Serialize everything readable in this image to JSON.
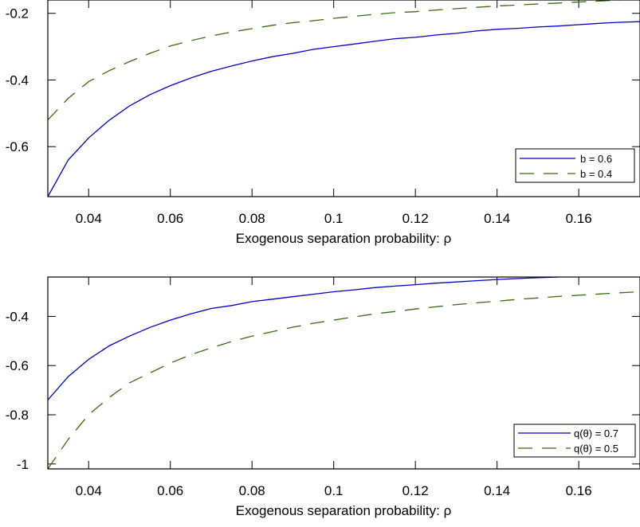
{
  "chart_data": [
    {
      "type": "line",
      "title": "",
      "xlabel": "Exogenous separation probability: ρ",
      "ylabel": "",
      "xlim": [
        0.03,
        0.175
      ],
      "ylim": [
        -0.75,
        -0.16
      ],
      "xticks": [
        0.04,
        0.06,
        0.08,
        0.1,
        0.12,
        0.14,
        0.16
      ],
      "xtick_labels": [
        "0.04",
        "0.06",
        "0.08",
        "0.1",
        "0.12",
        "0.14",
        "0.16"
      ],
      "yticks": [
        -0.6,
        -0.4,
        -0.2
      ],
      "ytick_labels": [
        "-0.6",
        "-0.4",
        "-0.2"
      ],
      "grid": false,
      "legend_position": "bottom-right",
      "x": [
        0.03,
        0.035,
        0.04,
        0.045,
        0.05,
        0.055,
        0.06,
        0.065,
        0.07,
        0.075,
        0.08,
        0.085,
        0.09,
        0.095,
        0.1,
        0.105,
        0.11,
        0.115,
        0.12,
        0.125,
        0.13,
        0.135,
        0.14,
        0.145,
        0.15,
        0.155,
        0.16,
        0.165,
        0.17,
        0.175
      ],
      "series": [
        {
          "name": "b = 0.6",
          "color": "#0000cc",
          "dash": "solid",
          "values": [
            -0.75,
            -0.64,
            -0.574,
            -0.521,
            -0.478,
            -0.444,
            -0.417,
            -0.394,
            -0.374,
            -0.358,
            -0.343,
            -0.33,
            -0.32,
            -0.308,
            -0.3,
            -0.292,
            -0.284,
            -0.276,
            -0.272,
            -0.265,
            -0.26,
            -0.253,
            -0.248,
            -0.245,
            -0.241,
            -0.238,
            -0.234,
            -0.23,
            -0.227,
            -0.225
          ]
        },
        {
          "name": "b = 0.4",
          "color": "#3b6b12",
          "dash": "dashed",
          "values": [
            -0.52,
            -0.455,
            -0.405,
            -0.372,
            -0.345,
            -0.32,
            -0.298,
            -0.282,
            -0.268,
            -0.256,
            -0.246,
            -0.236,
            -0.228,
            -0.222,
            -0.215,
            -0.209,
            -0.203,
            -0.198,
            -0.195,
            -0.19,
            -0.186,
            -0.182,
            -0.178,
            -0.175,
            -0.172,
            -0.169,
            -0.166,
            -0.163,
            -0.16,
            -0.158
          ]
        }
      ]
    },
    {
      "type": "line",
      "title": "",
      "xlabel": "Exogenous separation probability: ρ",
      "ylabel": "",
      "xlim": [
        0.03,
        0.175
      ],
      "ylim": [
        -1.02,
        -0.24
      ],
      "xticks": [
        0.04,
        0.06,
        0.08,
        0.1,
        0.12,
        0.14,
        0.16
      ],
      "xtick_labels": [
        "0.04",
        "0.06",
        "0.08",
        "0.1",
        "0.12",
        "0.14",
        "0.16"
      ],
      "yticks": [
        -1,
        -0.8,
        -0.6,
        -0.4
      ],
      "ytick_labels": [
        "-1",
        "-0.8",
        "-0.6",
        "-0.4"
      ],
      "grid": false,
      "legend_position": "bottom-right",
      "x": [
        0.03,
        0.035,
        0.04,
        0.045,
        0.05,
        0.055,
        0.06,
        0.065,
        0.07,
        0.075,
        0.08,
        0.085,
        0.09,
        0.095,
        0.1,
        0.105,
        0.11,
        0.115,
        0.12,
        0.125,
        0.13,
        0.135,
        0.14,
        0.145,
        0.15,
        0.155,
        0.16,
        0.165,
        0.17,
        0.175
      ],
      "series": [
        {
          "name": "q(θ) = 0.7",
          "color": "#0000cc",
          "dash": "solid",
          "values": [
            -0.74,
            -0.645,
            -0.575,
            -0.52,
            -0.48,
            -0.445,
            -0.415,
            -0.39,
            -0.368,
            -0.356,
            -0.34,
            -0.33,
            -0.32,
            -0.31,
            -0.3,
            -0.292,
            -0.283,
            -0.277,
            -0.271,
            -0.265,
            -0.26,
            -0.255,
            -0.25,
            -0.246,
            -0.243,
            -0.24,
            -0.236,
            -0.233,
            -0.23,
            -0.228
          ]
        },
        {
          "name": "q(θ) = 0.5",
          "color": "#3b6b12",
          "dash": "dashed",
          "values": [
            -1.02,
            -0.9,
            -0.8,
            -0.73,
            -0.67,
            -0.63,
            -0.59,
            -0.556,
            -0.528,
            -0.502,
            -0.48,
            -0.462,
            -0.444,
            -0.428,
            -0.415,
            -0.402,
            -0.39,
            -0.38,
            -0.37,
            -0.361,
            -0.352,
            -0.345,
            -0.338,
            -0.331,
            -0.325,
            -0.319,
            -0.314,
            -0.309,
            -0.304,
            -0.3
          ]
        }
      ]
    }
  ]
}
